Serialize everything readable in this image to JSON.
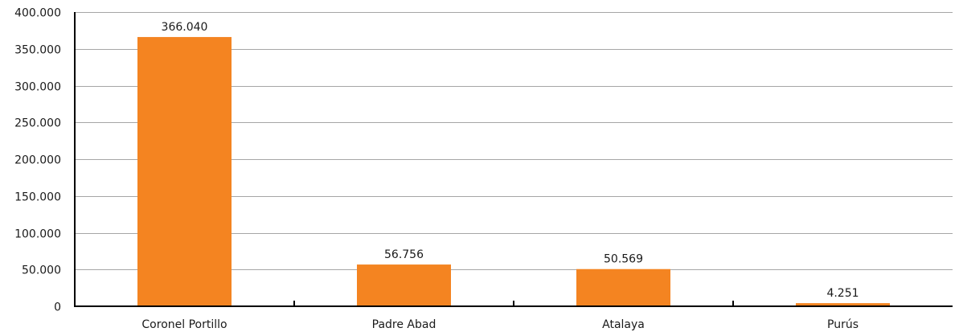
{
  "chart_data": {
    "type": "bar",
    "categories": [
      "Coronel Portillo",
      "Padre Abad",
      "Atalaya",
      "Purús"
    ],
    "values": [
      366040,
      56756,
      50569,
      4251
    ],
    "value_labels": [
      "366.040",
      "56.756",
      "50.569",
      "4.251"
    ],
    "ylim": [
      0,
      400000
    ],
    "yticks": [
      0,
      50000,
      100000,
      150000,
      200000,
      250000,
      300000,
      350000,
      400000
    ],
    "ytick_labels": [
      "0",
      "50.000",
      "100.000",
      "150.000",
      "200.000",
      "250.000",
      "300.000",
      "350.000",
      "400.000"
    ],
    "grid": true,
    "legend": "none",
    "colors": {
      "bar": "#f48421",
      "grid": "#a6a6a6",
      "axis": "#000000"
    }
  }
}
